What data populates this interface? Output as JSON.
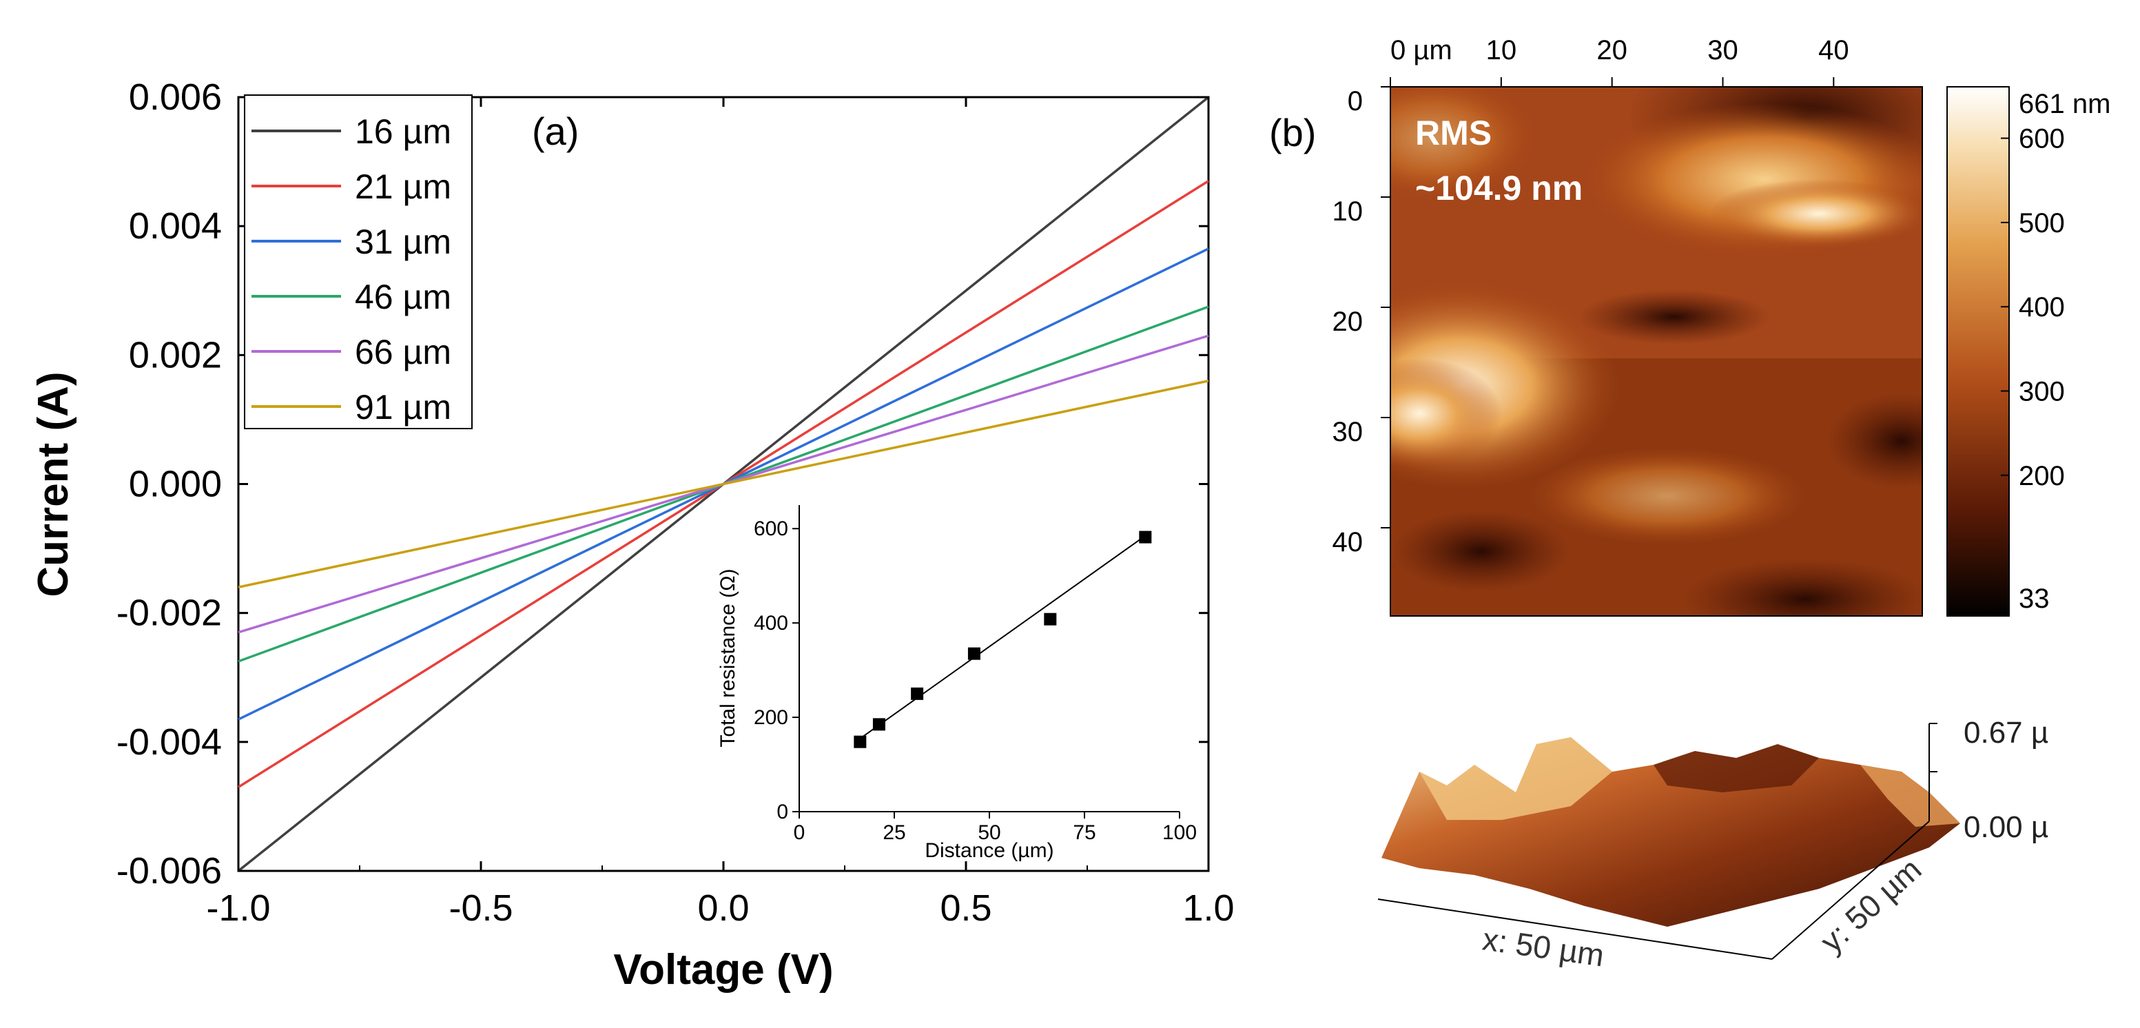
{
  "chart_data": [
    {
      "type": "line",
      "panel_label": "(a)",
      "xlabel": "Voltage (V)",
      "ylabel": "Current (A)",
      "xlim": [
        -1.0,
        1.0
      ],
      "ylim": [
        -0.006,
        0.006
      ],
      "x_ticks": [
        "-1.0",
        "-0.5",
        "0.0",
        "0.5",
        "1.0"
      ],
      "y_ticks": [
        "0.006",
        "0.004",
        "0.002",
        "0.000",
        "-0.002",
        "-0.004",
        "-0.006"
      ],
      "legend_position": "top-left",
      "series": [
        {
          "name": "16 µm",
          "color": "#404040",
          "slope": 0.006
        },
        {
          "name": "21 µm",
          "color": "#e8403a",
          "slope": 0.0047
        },
        {
          "name": "31 µm",
          "color": "#2e6fd9",
          "slope": 0.00365
        },
        {
          "name": "46 µm",
          "color": "#2aa86a",
          "slope": 0.00275
        },
        {
          "name": "66 µm",
          "color": "#b06ad6",
          "slope": 0.0023
        },
        {
          "name": "91 µm",
          "color": "#c9a012",
          "slope": 0.0016
        }
      ]
    },
    {
      "type": "scatter",
      "role": "inset",
      "xlabel": "Distance (µm)",
      "ylabel": "Total resistance (Ω)",
      "xlim": [
        0,
        100
      ],
      "ylim": [
        0,
        650
      ],
      "x_ticks": [
        "0",
        "25",
        "50",
        "75",
        "100"
      ],
      "y_ticks": [
        "0",
        "200",
        "400",
        "600"
      ],
      "points": [
        [
          16,
          148
        ],
        [
          21,
          185
        ],
        [
          31,
          250
        ],
        [
          46,
          335
        ],
        [
          66,
          408
        ],
        [
          91,
          582
        ]
      ],
      "fit_line": [
        [
          16,
          155
        ],
        [
          91,
          585
        ]
      ]
    },
    {
      "type": "heatmap",
      "panel_label": "(b)",
      "annotation_line1": "RMS",
      "annotation_line2": "~104.9 nm",
      "x_ticks": [
        "0 µm",
        "10",
        "20",
        "30",
        "40"
      ],
      "y_ticks": [
        "0",
        "10",
        "20",
        "30",
        "40"
      ],
      "colorbar_ticks": [
        "661 nm",
        "600",
        "500",
        "400",
        "300",
        "200",
        "33"
      ],
      "colorbar_range": [
        33,
        661
      ],
      "surface3d": {
        "z_top_label": "0.67 µ",
        "z_bottom_label": "0.00 µ",
        "x_axis_label": "x: 50 µm",
        "y_axis_label": "y: 50 µm"
      }
    }
  ]
}
